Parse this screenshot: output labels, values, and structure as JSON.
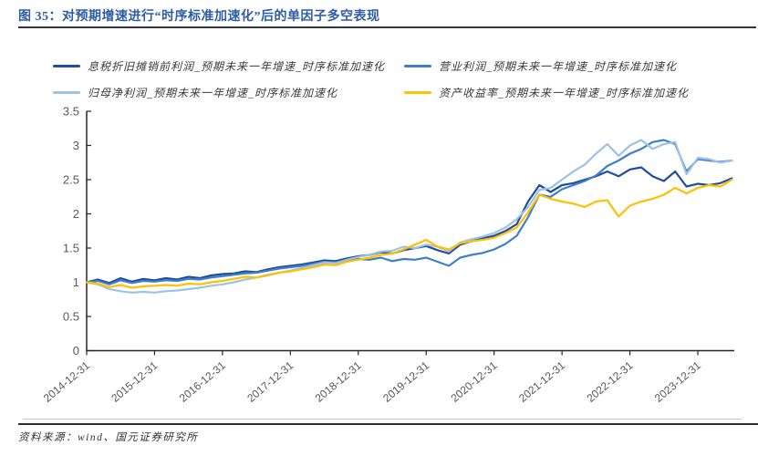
{
  "page": {
    "title": "图 35：对预期增速进行“时序标准加速化”后的单因子多空表现",
    "title_color": "#2E5CA6",
    "source": "资料来源：wind、国元证券研究所"
  },
  "chart_data": {
    "type": "line",
    "title": "对预期增速进行“时序标准加速化”后的单因子多空表现",
    "xlabel": "",
    "ylabel": "",
    "ylim": [
      0,
      3.5
    ],
    "grid": false,
    "legend_position": "top",
    "axis_color": "#262626",
    "tick_label_color": "#595959",
    "months_per_point": 2,
    "x_start": "2014-12-31",
    "x_tick_labels": [
      "2014-12-31",
      "2015-12-31",
      "2016-12-31",
      "2017-12-31",
      "2018-12-31",
      "2019-12-31",
      "2020-12-31",
      "2021-12-31",
      "2022-12-31",
      "2023-12-31"
    ],
    "y_tick_labels": [
      "0",
      "0.5",
      "1",
      "1.5",
      "2",
      "2.5",
      "3",
      "3.5"
    ],
    "series": [
      {
        "name": "息税折旧摊销前利润_预期未来一年增速_时序标准加速化",
        "color": "#1F4E9E",
        "values": [
          1.0,
          1.04,
          0.99,
          1.06,
          1.01,
          1.05,
          1.03,
          1.06,
          1.04,
          1.08,
          1.06,
          1.1,
          1.12,
          1.13,
          1.16,
          1.15,
          1.19,
          1.22,
          1.24,
          1.26,
          1.29,
          1.32,
          1.31,
          1.35,
          1.38,
          1.4,
          1.44,
          1.42,
          1.47,
          1.5,
          1.53,
          1.47,
          1.42,
          1.55,
          1.6,
          1.64,
          1.68,
          1.75,
          1.85,
          2.18,
          2.42,
          2.32,
          2.42,
          2.45,
          2.5,
          2.55,
          2.62,
          2.55,
          2.65,
          2.68,
          2.55,
          2.48,
          2.62,
          2.4,
          2.44,
          2.42,
          2.45,
          2.52
        ]
      },
      {
        "name": "营业利润_预期未来一年增速_时序标准加速化",
        "color": "#3F7FC7",
        "values": [
          1.0,
          1.02,
          0.97,
          1.03,
          0.99,
          1.02,
          1.01,
          1.03,
          1.02,
          1.05,
          1.04,
          1.07,
          1.09,
          1.11,
          1.13,
          1.14,
          1.17,
          1.2,
          1.22,
          1.24,
          1.27,
          1.3,
          1.29,
          1.32,
          1.34,
          1.33,
          1.36,
          1.31,
          1.34,
          1.33,
          1.36,
          1.3,
          1.24,
          1.36,
          1.4,
          1.43,
          1.48,
          1.56,
          1.68,
          1.95,
          2.28,
          2.25,
          2.36,
          2.42,
          2.48,
          2.56,
          2.7,
          2.78,
          2.88,
          2.95,
          3.05,
          3.08,
          3.02,
          2.62,
          2.8,
          2.78,
          2.76,
          2.78
        ]
      },
      {
        "name": "归母净利润_预期未来一年增速_时序标准加速化",
        "color": "#9CC2E8",
        "values": [
          1.0,
          0.97,
          0.9,
          0.87,
          0.85,
          0.86,
          0.85,
          0.87,
          0.88,
          0.9,
          0.92,
          0.95,
          0.97,
          1.0,
          1.04,
          1.07,
          1.1,
          1.14,
          1.17,
          1.21,
          1.25,
          1.29,
          1.28,
          1.33,
          1.37,
          1.4,
          1.45,
          1.46,
          1.52,
          1.5,
          1.55,
          1.52,
          1.45,
          1.58,
          1.63,
          1.67,
          1.72,
          1.8,
          1.92,
          2.1,
          2.35,
          2.38,
          2.5,
          2.62,
          2.72,
          2.88,
          3.02,
          2.85,
          3.0,
          3.08,
          2.95,
          3.02,
          3.05,
          2.58,
          2.82,
          2.8,
          2.75,
          2.78
        ]
      },
      {
        "name": "资产收益率_预期未来一年增速_时序标准加速化",
        "color": "#FFC000",
        "values": [
          1.0,
          0.98,
          0.93,
          0.96,
          0.92,
          0.94,
          0.95,
          0.96,
          0.95,
          0.98,
          0.97,
          1.0,
          1.02,
          1.05,
          1.08,
          1.07,
          1.11,
          1.14,
          1.16,
          1.19,
          1.22,
          1.26,
          1.25,
          1.3,
          1.33,
          1.36,
          1.4,
          1.42,
          1.48,
          1.55,
          1.62,
          1.52,
          1.48,
          1.57,
          1.6,
          1.62,
          1.65,
          1.72,
          1.8,
          2.02,
          2.28,
          2.22,
          2.18,
          2.15,
          2.1,
          2.18,
          2.2,
          1.96,
          2.12,
          2.18,
          2.22,
          2.28,
          2.38,
          2.3,
          2.38,
          2.42,
          2.4,
          2.5
        ]
      }
    ]
  }
}
